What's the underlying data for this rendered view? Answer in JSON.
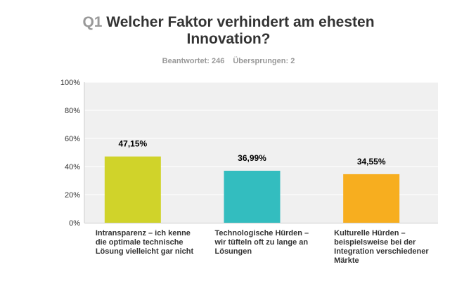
{
  "header": {
    "question_number": "Q1",
    "title": "Welcher Faktor verhindert am ehesten Innovation?",
    "answered": "Beantwortet: 246",
    "skipped": "Übersprungen: 2"
  },
  "chart_data": {
    "type": "bar",
    "categories": [
      "Intransparenz – ich kenne die optimale technische Lösung vielleicht gar nicht",
      "Technologische Hürden – wir tüfteln oft zu lange an Lösungen",
      "Kulturelle Hürden – beispielsweise bei der Integration verschiedener Märkte"
    ],
    "values": [
      47.15,
      36.99,
      34.55
    ],
    "data_labels": [
      "47,15%",
      "36,99%",
      "34,55%"
    ],
    "colors": [
      "#d0d32a",
      "#33bdbf",
      "#f7ae1f"
    ],
    "yticks": [
      "0%",
      "20%",
      "40%",
      "60%",
      "80%",
      "100%"
    ],
    "ylim": [
      0,
      100
    ],
    "grid": true,
    "background": "#f0f0f0"
  }
}
